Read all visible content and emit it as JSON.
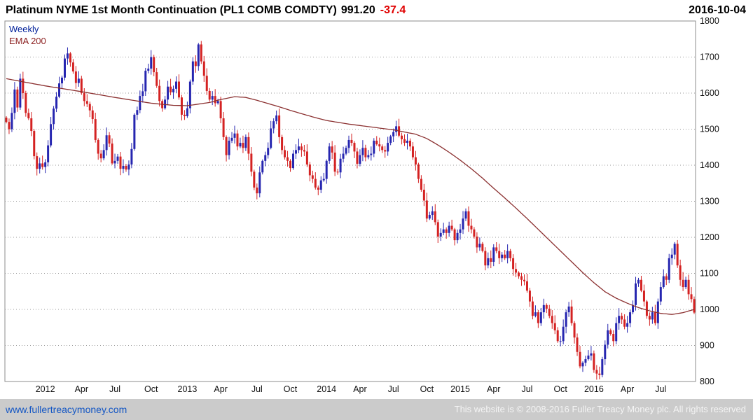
{
  "header": {
    "title": "Platinum NYME 1st Month Continuation (PL1 COMB COMDTY)",
    "price": "991.20",
    "change": "-37.4",
    "date": "2016-10-04"
  },
  "legend": {
    "timeframe": "Weekly",
    "overlay": "EMA 200"
  },
  "footer": {
    "site": "www.fullertreacymoney.com",
    "copyright": "This website is © 2008-2016 Fuller Treacy Money plc. All rights reserved"
  },
  "colors": {
    "up": "#2626b0",
    "down": "#d42222",
    "ema": "#8b3030",
    "grid": "#9a9a9a",
    "border": "#8c8c8c",
    "axis_text": "#111111",
    "change": "#e00000",
    "footer_bg": "#cbcbcb",
    "link": "#1356c4"
  },
  "chart_data": {
    "type": "candlestick",
    "title": "Platinum NYME 1st Month Continuation (PL1 COMB COMDTY)",
    "timeframe": "Weekly",
    "overlay": "EMA 200",
    "last_price": 991.2,
    "change": -37.4,
    "date": "2016-10-04",
    "ylim": [
      800,
      1800
    ],
    "y_ticks": [
      800,
      900,
      1000,
      1100,
      1200,
      1300,
      1400,
      1500,
      1600,
      1700,
      1800
    ],
    "x_ticks": [
      {
        "label": "2012",
        "i": 14
      },
      {
        "label": "Apr",
        "i": 27
      },
      {
        "label": "Jul",
        "i": 39
      },
      {
        "label": "Oct",
        "i": 52
      },
      {
        "label": "2013",
        "i": 65
      },
      {
        "label": "Apr",
        "i": 77
      },
      {
        "label": "Jul",
        "i": 90
      },
      {
        "label": "Oct",
        "i": 102
      },
      {
        "label": "2014",
        "i": 115
      },
      {
        "label": "Apr",
        "i": 127
      },
      {
        "label": "Jul",
        "i": 139
      },
      {
        "label": "Oct",
        "i": 151
      },
      {
        "label": "2015",
        "i": 163
      },
      {
        "label": "Apr",
        "i": 175
      },
      {
        "label": "Jul",
        "i": 187
      },
      {
        "label": "Oct",
        "i": 199
      },
      {
        "label": "2016",
        "i": 211
      },
      {
        "label": "Apr",
        "i": 223
      },
      {
        "label": "Jul",
        "i": 235
      }
    ],
    "first_open": 1532,
    "weekly_closes": [
      1520,
      1500,
      1545,
      1610,
      1560,
      1640,
      1600,
      1545,
      1530,
      1495,
      1425,
      1390,
      1405,
      1395,
      1408,
      1455,
      1514,
      1557,
      1590,
      1627,
      1643,
      1696,
      1710,
      1685,
      1660,
      1628,
      1640,
      1600,
      1578,
      1570,
      1552,
      1528,
      1470,
      1432,
      1419,
      1442,
      1483,
      1460,
      1405,
      1412,
      1424,
      1390,
      1398,
      1388,
      1402,
      1445,
      1540,
      1553,
      1592,
      1605,
      1662,
      1668,
      1700,
      1658,
      1620,
      1578,
      1558,
      1582,
      1618,
      1602,
      1612,
      1632,
      1588,
      1540,
      1536,
      1558,
      1632,
      1688,
      1675,
      1735,
      1688,
      1648,
      1606,
      1582,
      1592,
      1572,
      1578,
      1530,
      1478,
      1428,
      1468,
      1476,
      1488,
      1452,
      1462,
      1448,
      1478,
      1432,
      1382,
      1338,
      1322,
      1380,
      1412,
      1428,
      1448,
      1502,
      1522,
      1538,
      1478,
      1442,
      1422,
      1412,
      1392,
      1432,
      1442,
      1452,
      1442,
      1438,
      1402,
      1372,
      1362,
      1338,
      1332,
      1358,
      1362,
      1412,
      1452,
      1435,
      1382,
      1380,
      1418,
      1432,
      1448,
      1470,
      1462,
      1438,
      1404,
      1428,
      1448,
      1422,
      1428,
      1432,
      1468,
      1458,
      1452,
      1442,
      1438,
      1462,
      1480,
      1492,
      1508,
      1482,
      1472,
      1462,
      1468,
      1452,
      1422,
      1402,
      1362,
      1332,
      1302,
      1252,
      1262,
      1272,
      1242,
      1202,
      1212,
      1222,
      1212,
      1232,
      1222,
      1192,
      1212,
      1222,
      1252,
      1272,
      1232,
      1222,
      1202,
      1172,
      1182,
      1162,
      1122,
      1142,
      1132,
      1172,
      1162,
      1142,
      1152,
      1142,
      1162,
      1142,
      1112,
      1102,
      1092,
      1082,
      1078,
      1052,
      1022,
      982,
      992,
      962,
      992,
      1012,
      1002,
      982,
      962,
      942,
      912,
      912,
      952,
      992,
      1008,
      962,
      922,
      882,
      842,
      852,
      862,
      872,
      878,
      832,
      822,
      818,
      862,
      902,
      942,
      932,
      912,
      962,
      982,
      972,
      952,
      962,
      992,
      1012,
      1072,
      1082,
      1052,
      1022,
      982,
      972,
      992,
      962,
      1022,
      1062,
      1092,
      1082,
      1142,
      1152,
      1182,
      1122,
      1082,
      1062,
      1082,
      1042,
      1028.6,
      991.2
    ],
    "ema200_anchors": [
      [
        0,
        1640
      ],
      [
        14,
        1620
      ],
      [
        27,
        1604
      ],
      [
        39,
        1588
      ],
      [
        52,
        1572
      ],
      [
        60,
        1566
      ],
      [
        65,
        1565
      ],
      [
        73,
        1574
      ],
      [
        77,
        1582
      ],
      [
        82,
        1590
      ],
      [
        86,
        1588
      ],
      [
        90,
        1580
      ],
      [
        98,
        1562
      ],
      [
        102,
        1552
      ],
      [
        110,
        1534
      ],
      [
        115,
        1524
      ],
      [
        123,
        1514
      ],
      [
        131,
        1506
      ],
      [
        139,
        1498
      ],
      [
        147,
        1486
      ],
      [
        151,
        1474
      ],
      [
        155,
        1456
      ],
      [
        159,
        1436
      ],
      [
        163,
        1414
      ],
      [
        167,
        1390
      ],
      [
        171,
        1364
      ],
      [
        175,
        1336
      ],
      [
        179,
        1309
      ],
      [
        183,
        1281
      ],
      [
        187,
        1252
      ],
      [
        191,
        1222
      ],
      [
        195,
        1192
      ],
      [
        199,
        1162
      ],
      [
        203,
        1132
      ],
      [
        207,
        1102
      ],
      [
        211,
        1074
      ],
      [
        215,
        1049
      ],
      [
        219,
        1031
      ],
      [
        223,
        1017
      ],
      [
        227,
        1005
      ],
      [
        231,
        996
      ],
      [
        235,
        989
      ],
      [
        239,
        986
      ],
      [
        243,
        991
      ],
      [
        247,
        1000
      ]
    ]
  }
}
